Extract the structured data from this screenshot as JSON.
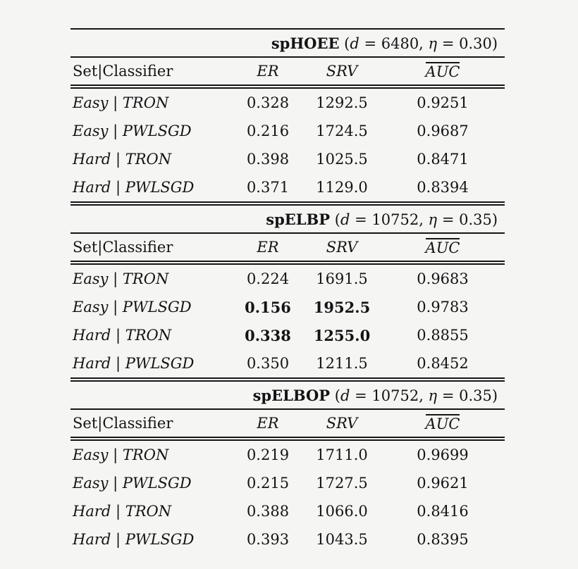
{
  "page": {
    "background": "#f5f5f4",
    "text_color": "#141414",
    "rule_color": "#151515"
  },
  "column_headers": {
    "key": "Set|Classifier",
    "er": "ER",
    "srv": "SRV",
    "auc": "AUC"
  },
  "sections": [
    {
      "name": "spHOEE",
      "params": "(d = 6480, η = 0.30)",
      "title_segments": [
        {
          "text": "spHOEE",
          "style": "bold"
        },
        {
          "text": " (",
          "style": "plain"
        },
        {
          "text": "d",
          "style": "italic"
        },
        {
          "text": " = 6480, ",
          "style": "plain"
        },
        {
          "text": "η",
          "style": "italic"
        },
        {
          "text": " = 0.30)",
          "style": "plain"
        }
      ],
      "rows": [
        {
          "label": "Easy | TRON",
          "er": "0.328",
          "srv": "1292.5",
          "auc": "0.9251",
          "bold": []
        },
        {
          "label": "Easy | PWLSGD",
          "er": "0.216",
          "srv": "1724.5",
          "auc": "0.9687",
          "bold": []
        },
        {
          "label": "Hard | TRON",
          "er": "0.398",
          "srv": "1025.5",
          "auc": "0.8471",
          "bold": []
        },
        {
          "label": "Hard | PWLSGD",
          "er": "0.371",
          "srv": "1129.0",
          "auc": "0.8394",
          "bold": []
        }
      ]
    },
    {
      "name": "spELBP",
      "params": "(d = 10752, η = 0.35)",
      "title_segments": [
        {
          "text": "spELBP",
          "style": "bold"
        },
        {
          "text": " (",
          "style": "plain"
        },
        {
          "text": "d",
          "style": "italic"
        },
        {
          "text": " = 10752, ",
          "style": "plain"
        },
        {
          "text": "η",
          "style": "italic"
        },
        {
          "text": " = 0.35)",
          "style": "plain"
        }
      ],
      "rows": [
        {
          "label": "Easy | TRON",
          "er": "0.224",
          "srv": "1691.5",
          "auc": "0.9683",
          "bold": []
        },
        {
          "label": "Easy | PWLSGD",
          "er": "0.156",
          "srv": "1952.5",
          "auc": "0.9783",
          "bold": [
            "er",
            "srv"
          ]
        },
        {
          "label": "Hard | TRON",
          "er": "0.338",
          "srv": "1255.0",
          "auc": "0.8855",
          "bold": [
            "er",
            "srv"
          ]
        },
        {
          "label": "Hard | PWLSGD",
          "er": "0.350",
          "srv": "1211.5",
          "auc": "0.8452",
          "bold": []
        }
      ]
    },
    {
      "name": "spELBOP",
      "params": "(d = 10752, η = 0.35)",
      "title_segments": [
        {
          "text": "spELBOP",
          "style": "bold"
        },
        {
          "text": " (",
          "style": "plain"
        },
        {
          "text": "d",
          "style": "italic"
        },
        {
          "text": " = 10752, ",
          "style": "plain"
        },
        {
          "text": "η",
          "style": "italic"
        },
        {
          "text": " = 0.35)",
          "style": "plain"
        }
      ],
      "rows": [
        {
          "label": "Easy | TRON",
          "er": "0.219",
          "srv": "1711.0",
          "auc": "0.9699",
          "bold": []
        },
        {
          "label": "Easy | PWLSGD",
          "er": "0.215",
          "srv": "1727.5",
          "auc": "0.9621",
          "bold": []
        },
        {
          "label": "Hard | TRON",
          "er": "0.388",
          "srv": "1066.0",
          "auc": "0.8416",
          "bold": []
        },
        {
          "label": "Hard | PWLSGD",
          "er": "0.393",
          "srv": "1043.5",
          "auc": "0.8395",
          "bold": []
        }
      ]
    }
  ]
}
